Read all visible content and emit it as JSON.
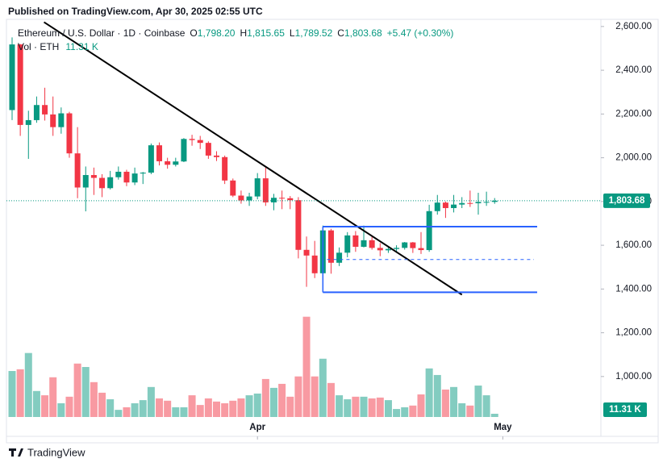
{
  "header": {
    "published": "Published on TradingView.com, Apr 30, 2025 02:55 UTC"
  },
  "footer": {
    "brand": "TradingView"
  },
  "chart_data": {
    "type": "candlestick",
    "legend": {
      "symbol": "Ethereum / U.S. Dollar · 1D · Coinbase",
      "ohlc": [
        {
          "key": "O",
          "value": "1,798.20"
        },
        {
          "key": "H",
          "value": "1,815.65"
        },
        {
          "key": "L",
          "value": "1,789.52"
        },
        {
          "key": "C",
          "value": "1,803.68"
        }
      ],
      "change": "+5.47 (+0.30%)",
      "volume_title": "Vol · ETH",
      "volume_value": "11.31 K"
    },
    "last_price_label": "1,803.68",
    "last_volume_label": "11.31 K",
    "up_color": "#089981",
    "down_color": "#f23645",
    "open": [
      2218,
      2518,
      2150,
      2172,
      2241,
      2198,
      2140,
      2203,
      2020,
      1864,
      1921,
      1908,
      1861,
      1911,
      1936,
      1887,
      1928,
      1932,
      2057,
      1984,
      1968,
      1983,
      2086,
      2081,
      2068,
      2010,
      2003,
      1896,
      1827,
      1805,
      1823,
      1906,
      1796,
      1817,
      1815,
      1806,
      1579,
      1553,
      1472,
      1668,
      1520,
      1566,
      1645,
      1593,
      1623,
      1588,
      1577,
      1583,
      1588,
      1613,
      1587,
      1578,
      1756,
      1795,
      1770,
      1786,
      1793,
      1792,
      1798,
      1798.2
    ],
    "high": [
      2550,
      2520,
      2215,
      2280,
      2320,
      2280,
      2230,
      2210,
      2140,
      1960,
      1955,
      1925,
      1940,
      1960,
      1945,
      1955,
      1935,
      2065,
      2070,
      2000,
      2000,
      2090,
      2105,
      2100,
      2075,
      2030,
      2010,
      1905,
      1850,
      1840,
      1930,
      1955,
      1835,
      1850,
      1825,
      1820,
      1640,
      1620,
      1690,
      1675,
      1590,
      1660,
      1665,
      1690,
      1640,
      1610,
      1595,
      1600,
      1615,
      1615,
      1660,
      1785,
      1830,
      1800,
      1830,
      1820,
      1850,
      1840,
      1845,
      1815.65
    ],
    "low": [
      2172,
      2100,
      1995,
      2160,
      2170,
      2100,
      2110,
      2000,
      1815,
      1755,
      1830,
      1820,
      1855,
      1900,
      1870,
      1875,
      1880,
      1925,
      1965,
      1950,
      1960,
      1980,
      2055,
      2040,
      1995,
      1985,
      1880,
      1820,
      1790,
      1780,
      1810,
      1780,
      1760,
      1765,
      1765,
      1540,
      1410,
      1450,
      1385,
      1470,
      1505,
      1545,
      1570,
      1590,
      1580,
      1550,
      1565,
      1570,
      1580,
      1565,
      1560,
      1570,
      1740,
      1725,
      1750,
      1770,
      1775,
      1740,
      1780,
      1789.52
    ],
    "close": [
      2518,
      2150,
      2172,
      2241,
      2198,
      2140,
      2203,
      2020,
      1864,
      1921,
      1908,
      1861,
      1911,
      1936,
      1887,
      1928,
      1932,
      2057,
      1984,
      1968,
      1983,
      2086,
      2081,
      2068,
      2010,
      2003,
      1896,
      1827,
      1805,
      1823,
      1906,
      1796,
      1817,
      1815,
      1806,
      1579,
      1553,
      1472,
      1668,
      1520,
      1566,
      1645,
      1593,
      1623,
      1588,
      1577,
      1583,
      1588,
      1613,
      1587,
      1578,
      1756,
      1795,
      1770,
      1786,
      1793,
      1792,
      1798,
      1798.2,
      1803.68
    ],
    "volume": [
      161,
      167,
      224,
      91,
      76,
      139,
      48,
      71,
      187,
      175,
      122,
      85,
      62,
      25,
      34,
      48,
      59,
      105,
      65,
      57,
      34,
      34,
      76,
      42,
      65,
      54,
      48,
      57,
      65,
      76,
      82,
      133,
      102,
      116,
      71,
      142,
      351,
      142,
      204,
      119,
      76,
      62,
      71,
      71,
      65,
      68,
      59,
      28,
      34,
      40,
      79,
      170,
      147,
      96,
      105,
      48,
      40,
      110,
      76,
      11.31
    ],
    "ylim": [
      815,
      2640
    ],
    "yticks": [
      {
        "value": 1000,
        "label": "1,000.00"
      },
      {
        "value": 1200,
        "label": "1,200.00"
      },
      {
        "value": 1400,
        "label": "1,400.00"
      },
      {
        "value": 1600,
        "label": "1,600.00"
      },
      {
        "value": 1800,
        "label": "1,800.00"
      },
      {
        "value": 2000,
        "label": "2,000.00"
      },
      {
        "value": 2200,
        "label": "2,200.00"
      },
      {
        "value": 2400,
        "label": "2,400.00"
      },
      {
        "value": 2600,
        "label": "2,600.00"
      }
    ],
    "y2lim": [
      0,
      480
    ],
    "xticks": [
      {
        "value": 30,
        "label": "Apr"
      },
      {
        "value": 60,
        "label": "May"
      }
    ],
    "drawings": {
      "trendline": {
        "from": [
          3.9,
          2620
        ],
        "to": [
          55,
          1374
        ],
        "color": "#000000"
      },
      "hlines": [
        {
          "price": 1685,
          "from": 38,
          "to": 64.2,
          "style": "solid",
          "color": "#2962ff"
        },
        {
          "price": 1385,
          "from": 38,
          "to": 64.2,
          "style": "solid",
          "color": "#2962ff"
        },
        {
          "price": 1535,
          "from": 38.5,
          "to": 63.8,
          "style": "dashed",
          "color": "#2962ff"
        }
      ],
      "vline": {
        "at": 38,
        "from": 1385,
        "to": 1685,
        "color": "#2962ff"
      }
    }
  }
}
